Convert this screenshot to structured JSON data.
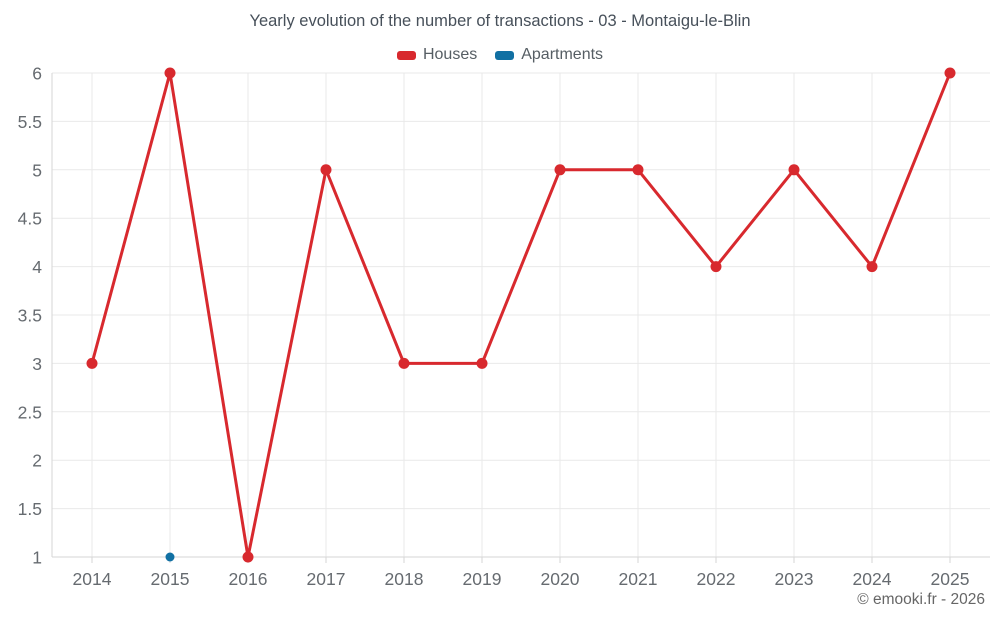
{
  "page": {
    "attribution": "© emooki.fr - 2026"
  },
  "legend": {
    "items": [
      {
        "label": "Houses",
        "color": "#d8292e"
      },
      {
        "label": "Apartments",
        "color": "#1170a3"
      }
    ]
  },
  "chart_data": {
    "type": "line",
    "title": "Yearly evolution of the number of transactions - 03 - Montaigu-le-Blin",
    "categories": [
      "2014",
      "2015",
      "2016",
      "2017",
      "2018",
      "2019",
      "2020",
      "2021",
      "2022",
      "2023",
      "2024",
      "2025"
    ],
    "series": [
      {
        "name": "Houses",
        "color": "#d8292e",
        "marker_radius": 5.5,
        "values": [
          3,
          6,
          1,
          5,
          3,
          3,
          5,
          5,
          4,
          5,
          4,
          6
        ]
      },
      {
        "name": "Apartments",
        "color": "#1170a3",
        "marker_radius": 4.5,
        "values": [
          null,
          1,
          null,
          null,
          null,
          null,
          null,
          null,
          null,
          null,
          null,
          null
        ]
      }
    ],
    "xlabel": "",
    "ylabel": "",
    "ylim": [
      1,
      6
    ],
    "ytick_step": 0.5,
    "grid": true,
    "legend_position": "top",
    "colors": {
      "grid": "#e9e9e9",
      "axis": "#d6d6d6",
      "tick_label": "#666b70",
      "title": "#47505a"
    }
  }
}
